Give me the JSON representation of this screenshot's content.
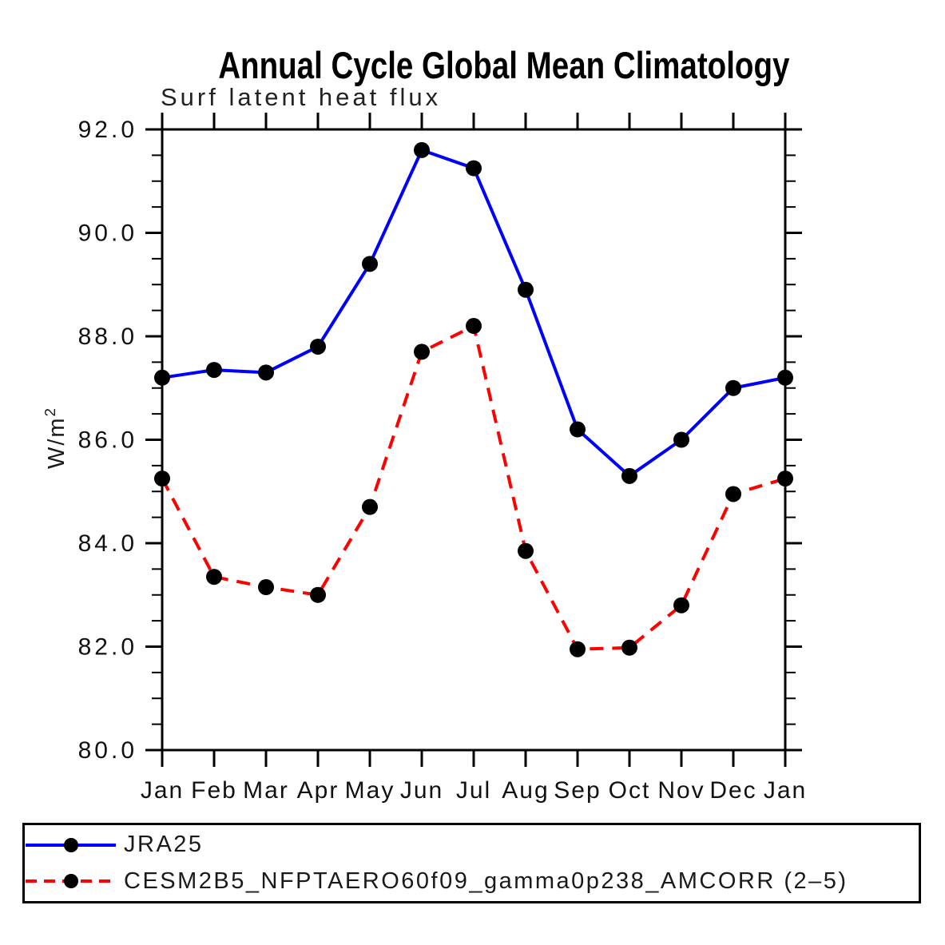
{
  "chart_data": {
    "type": "line",
    "title": "Annual Cycle Global Mean Climatology",
    "subtitle": "Surf latent heat flux",
    "ylabel": {
      "base": "W/m",
      "sup": "2"
    },
    "x_tick_labels": [
      "Jan",
      "Feb",
      "Mar",
      "Apr",
      "May",
      "Jun",
      "Jul",
      "Aug",
      "Sep",
      "Oct",
      "Nov",
      "Dec",
      "Jan"
    ],
    "ylim": [
      80.0,
      92.0
    ],
    "y_major_step": 2.0,
    "y_minor_step": 0.5,
    "y_tick_values": [
      92,
      90,
      88,
      86,
      84,
      82,
      80
    ],
    "y_tick_labels": [
      "92.0",
      "90.0",
      "88.0",
      "86.0",
      "84.0",
      "82.0",
      "80.0"
    ],
    "grid": false,
    "frame_color": "#000000",
    "marker_color": "#000000",
    "legend_position": "bottom-left-box",
    "series": [
      {
        "name": "JRA25",
        "color": "#0000ff",
        "line_style": "solid",
        "marker": "filled-circle",
        "values": [
          87.2,
          87.35,
          87.3,
          87.8,
          89.4,
          91.6,
          91.25,
          88.9,
          86.2,
          85.3,
          86.0,
          87.0,
          87.2
        ]
      },
      {
        "name": "CESM2B5_NFPTAERO60f09_gamma0p238_AMCORR (2–5)",
        "color": "#ff0000",
        "line_style": "dashed",
        "marker": "filled-circle",
        "values": [
          85.25,
          83.35,
          83.15,
          83.0,
          84.7,
          87.7,
          88.2,
          83.85,
          81.95,
          81.98,
          82.8,
          84.95,
          85.25
        ]
      }
    ]
  }
}
